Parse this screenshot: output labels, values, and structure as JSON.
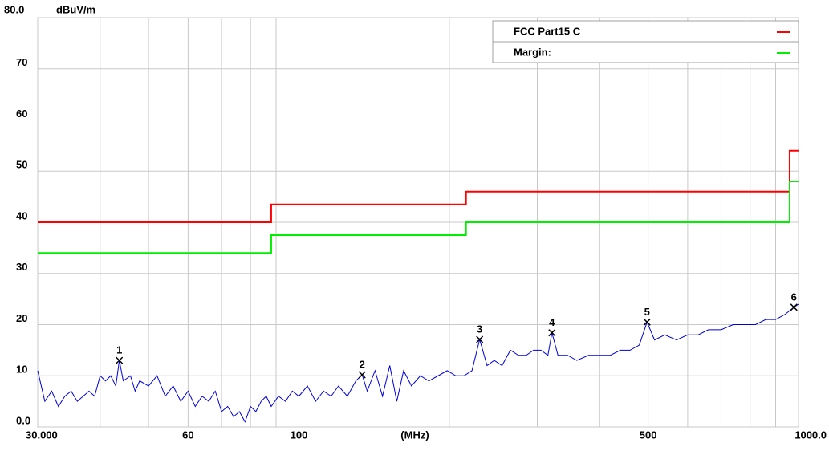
{
  "chart_data": {
    "type": "line",
    "xscale": "log",
    "grid": true,
    "ylabel": "dBuV/m",
    "xlabel": "(MHz)",
    "xlim": [
      30,
      1000
    ],
    "ylim": [
      0,
      80
    ],
    "xticks": [
      {
        "value": 30,
        "label": "30.000"
      },
      60,
      100,
      500,
      {
        "value": 1000,
        "label": "1000.0"
      }
    ],
    "xminor": [
      40,
      50,
      70,
      80,
      90,
      200,
      300,
      400,
      600,
      700,
      800,
      900
    ],
    "yticks": [
      {
        "value": 0,
        "label": "0.0"
      },
      10,
      20,
      30,
      40,
      50,
      60,
      70,
      {
        "value": 80,
        "label": "80.0"
      }
    ],
    "legend": "top-right",
    "series": [
      {
        "name": "FCC Part15 C",
        "color": "#ff0000",
        "x": [
          30,
          88,
          88,
          216,
          216,
          960,
          960,
          1000
        ],
        "values": [
          40,
          40,
          43.5,
          43.5,
          46,
          46,
          54,
          54
        ]
      },
      {
        "name": "Margin:",
        "color": "#00ee00",
        "x": [
          30,
          88,
          88,
          216,
          216,
          960,
          960,
          1000
        ],
        "values": [
          34,
          34,
          37.5,
          37.5,
          40,
          40,
          48,
          48
        ]
      }
    ],
    "trace": {
      "color": "#0000dd",
      "x": [
        30,
        31,
        32,
        33,
        34,
        35,
        36,
        37,
        38,
        39,
        40,
        41,
        42,
        43,
        43.7,
        44.5,
        46,
        47,
        48,
        50,
        52,
        54,
        56,
        58,
        60,
        62,
        64,
        66,
        68,
        70,
        72,
        74,
        76,
        78,
        80,
        82,
        84,
        86,
        88,
        91,
        94,
        97,
        100,
        104,
        108,
        112,
        116,
        120,
        125,
        130,
        133.8,
        137,
        142,
        147,
        152,
        157,
        162,
        168,
        175,
        182,
        190,
        198,
        206,
        214,
        222,
        230,
        238,
        246,
        255,
        265,
        275,
        285,
        295,
        305,
        315,
        321,
        330,
        345,
        360,
        380,
        400,
        420,
        440,
        460,
        480,
        497.5,
        515,
        540,
        570,
        600,
        630,
        660,
        700,
        740,
        780,
        820,
        860,
        900,
        940,
        979,
        1000
      ],
      "values": [
        11,
        5,
        7,
        4,
        6,
        7,
        5,
        6,
        7,
        6,
        10,
        9,
        10,
        8,
        13,
        9,
        10,
        7,
        9,
        8,
        10,
        6,
        8,
        5,
        7,
        4,
        6,
        5,
        7,
        3,
        4,
        2,
        3,
        1,
        4,
        3,
        5,
        6,
        4,
        6,
        5,
        7,
        6,
        8,
        5,
        7,
        6,
        8,
        6,
        9,
        10.2,
        7,
        11,
        6,
        12,
        5,
        11,
        8,
        10,
        9,
        10,
        11,
        10,
        10,
        11,
        17.1,
        12,
        13,
        12,
        15,
        14,
        14,
        15,
        15,
        14,
        18.4,
        14,
        14,
        13,
        14,
        14,
        14,
        15,
        15,
        16,
        20.5,
        17,
        18,
        17,
        18,
        18,
        19,
        19,
        20,
        20,
        20,
        21,
        21,
        22,
        23.4,
        24
      ]
    },
    "markers": {
      "labels": [
        "1",
        "2",
        "3",
        "4",
        "5",
        "6"
      ],
      "x": [
        43.7,
        133.8,
        230,
        321,
        497.5,
        979
      ],
      "values": [
        13,
        10.2,
        17.1,
        18.4,
        20.5,
        23.4
      ]
    }
  }
}
